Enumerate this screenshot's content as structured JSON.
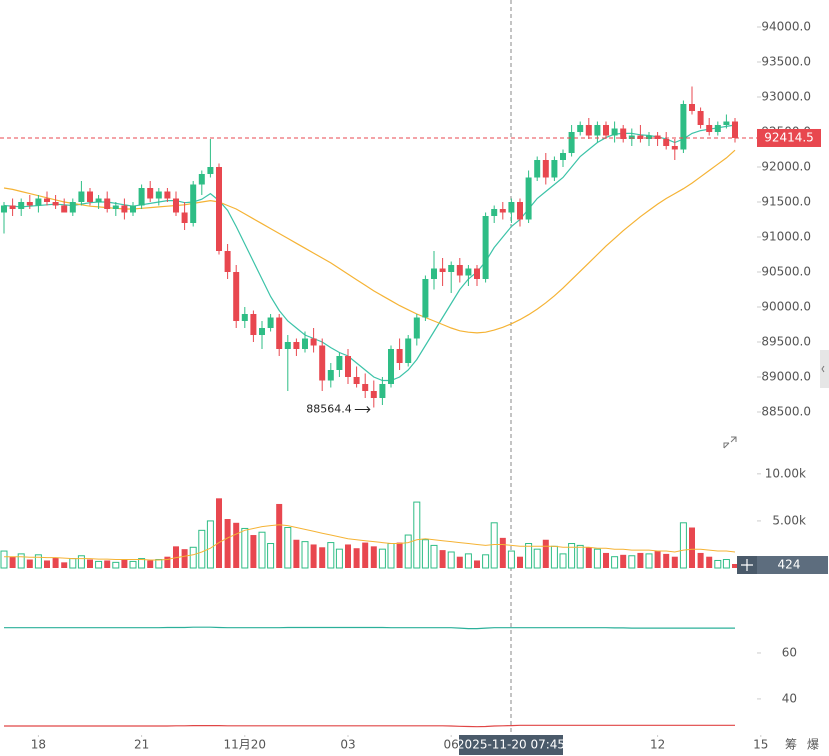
{
  "chart_data": {
    "type": "candlestick",
    "open": [
      91350,
      91450,
      91400,
      91500,
      91450,
      91550,
      91500,
      91450,
      91350,
      91500,
      91650,
      91500,
      91550,
      91400,
      91450,
      91350,
      91450,
      91700,
      91550,
      91650,
      91550,
      91350,
      91200,
      91750,
      91900,
      92000,
      90800,
      90500,
      89800,
      89900,
      89600,
      89700,
      89850,
      89400,
      89500,
      89400,
      89550,
      89450,
      88950,
      89100,
      89300,
      89000,
      88900,
      88800,
      88700,
      88900,
      89400,
      89200,
      89550,
      89850,
      90400,
      90550,
      90500,
      90600,
      90450,
      90550,
      90400,
      91300,
      91400,
      91350,
      91500,
      91250,
      91850,
      92100,
      91850,
      92100,
      92200,
      92500,
      92600,
      92450,
      92600,
      92450,
      92550,
      92400,
      92450,
      92400,
      92450,
      92400,
      92300,
      92250,
      92900,
      92800,
      92600,
      92500,
      92600,
      92650
    ],
    "high": [
      91500,
      91550,
      91550,
      91600,
      91600,
      91650,
      91600,
      91550,
      91550,
      91800,
      91700,
      91600,
      91650,
      91500,
      91550,
      91500,
      91750,
      91800,
      91700,
      91700,
      91650,
      91500,
      91800,
      91950,
      92400,
      92050,
      90900,
      90600,
      90000,
      89950,
      89800,
      89900,
      89900,
      89600,
      89550,
      89650,
      89700,
      89550,
      89200,
      89350,
      89400,
      89150,
      89050,
      88950,
      89000,
      89450,
      89550,
      89600,
      89900,
      90450,
      90800,
      90700,
      90650,
      90700,
      90600,
      90600,
      91350,
      91450,
      91500,
      91550,
      91550,
      91950,
      92150,
      92200,
      92150,
      92250,
      92600,
      92650,
      92700,
      92650,
      92650,
      92650,
      92600,
      92550,
      92600,
      92500,
      92500,
      92500,
      92400,
      92950,
      93150,
      92850,
      92700,
      92650,
      92750,
      92700
    ],
    "low": [
      91050,
      91300,
      91300,
      91400,
      91350,
      91450,
      91400,
      91350,
      91300,
      91450,
      91450,
      91400,
      91350,
      91300,
      91250,
      91300,
      91400,
      91500,
      91450,
      91500,
      91300,
      91100,
      91150,
      91600,
      91850,
      90750,
      90400,
      89700,
      89700,
      89500,
      89400,
      89650,
      89300,
      88800,
      89300,
      89350,
      89350,
      88800,
      88850,
      89000,
      88900,
      88850,
      88700,
      88564.4,
      88600,
      88850,
      89100,
      89150,
      89450,
      89800,
      90250,
      90300,
      90200,
      90350,
      90300,
      90300,
      90350,
      91200,
      91250,
      91200,
      91150,
      91200,
      91800,
      91750,
      91800,
      92000,
      92150,
      92450,
      92400,
      92350,
      92400,
      92350,
      92350,
      92300,
      92350,
      92300,
      92300,
      92250,
      92100,
      92200,
      92750,
      92550,
      92450,
      92450,
      92550,
      92350
    ],
    "close": [
      91450,
      91400,
      91500,
      91450,
      91550,
      91500,
      91450,
      91350,
      91500,
      91650,
      91500,
      91550,
      91400,
      91450,
      91350,
      91450,
      91700,
      91550,
      91650,
      91550,
      91350,
      91200,
      91750,
      91900,
      92000,
      90800,
      90500,
      89800,
      89900,
      89600,
      89700,
      89850,
      89400,
      89500,
      89400,
      89550,
      89450,
      88950,
      89100,
      89300,
      89000,
      88900,
      88800,
      88700,
      88900,
      89400,
      89200,
      89550,
      89850,
      90400,
      90550,
      90500,
      90600,
      90450,
      90550,
      90400,
      91300,
      91400,
      91350,
      91500,
      91250,
      91850,
      92100,
      91850,
      92100,
      92200,
      92500,
      92600,
      92450,
      92600,
      92450,
      92550,
      92400,
      92450,
      92400,
      92450,
      92400,
      92300,
      92250,
      92900,
      92800,
      92600,
      92500,
      92600,
      92650,
      92414.5
    ],
    "volume": [
      1800,
      1200,
      1500,
      900,
      1400,
      800,
      1100,
      600,
      1000,
      1300,
      900,
      700,
      800,
      600,
      900,
      700,
      1000,
      800,
      900,
      1200,
      2300,
      2000,
      2200,
      4000,
      5000,
      7400,
      5200,
      4800,
      4200,
      3500,
      3800,
      2600,
      6800,
      4300,
      3000,
      2800,
      2500,
      2200,
      2700,
      2000,
      2500,
      2100,
      2700,
      2300,
      2000,
      2600,
      2700,
      3500,
      7000,
      3000,
      2400,
      1900,
      1700,
      1200,
      1500,
      800,
      1400,
      4800,
      3200,
      1800,
      1200,
      2600,
      2000,
      3000,
      2300,
      1500,
      2600,
      2400,
      2200,
      2000,
      1600,
      1200,
      1400,
      1300,
      1600,
      1500,
      1800,
      1500,
      1200,
      4800,
      4300,
      1600,
      1200,
      800,
      900,
      424
    ],
    "up_color": "#2ebd85",
    "down_color": "#e8474f",
    "ylim": [
      88100,
      94385.7
    ],
    "yticks": [
      {
        "value": 94000,
        "label": "94000.0"
      },
      {
        "value": 93500,
        "label": "93500.0"
      },
      {
        "value": 93000,
        "label": "93000.0"
      },
      {
        "value": 92500,
        "label": "92500.0"
      },
      {
        "value": 92000,
        "label": "92000.0"
      },
      {
        "value": 91500,
        "label": "91500.0"
      },
      {
        "value": 91000,
        "label": "91000.0"
      },
      {
        "value": 90500,
        "label": "90500.0"
      },
      {
        "value": 90000,
        "label": "90000.0"
      },
      {
        "value": 89500,
        "label": "89500.0"
      },
      {
        "value": 89000,
        "label": "89000.0"
      },
      {
        "value": 88500,
        "label": "88500.0"
      }
    ],
    "ma": [
      {
        "color": "#3cc3a8",
        "values": [
          91450,
          91440,
          91430,
          91440,
          91450,
          91460,
          91470,
          91460,
          91450,
          91470,
          91490,
          91500,
          91500,
          91480,
          91460,
          91440,
          91460,
          91480,
          91500,
          91520,
          91520,
          91490,
          91500,
          91540,
          91620,
          91520,
          91380,
          91150,
          90900,
          90650,
          90400,
          90150,
          89950,
          89800,
          89700,
          89600,
          89550,
          89500,
          89420,
          89350,
          89300,
          89200,
          89100,
          89000,
          88950,
          88950,
          89000,
          89100,
          89250,
          89450,
          89650,
          89850,
          90050,
          90250,
          90400,
          90500,
          90650,
          90850,
          91000,
          91150,
          91250,
          91400,
          91550,
          91650,
          91750,
          91850,
          92000,
          92150,
          92250,
          92350,
          92420,
          92470,
          92480,
          92480,
          92460,
          92450,
          92430,
          92400,
          92350,
          92400,
          92480,
          92520,
          92540,
          92560,
          92580,
          92600
        ]
      },
      {
        "color": "#f5b335",
        "values": [
          91700,
          91680,
          91650,
          91620,
          91590,
          91560,
          91530,
          91500,
          91480,
          91460,
          91440,
          91430,
          91420,
          91410,
          91400,
          91400,
          91410,
          91420,
          91430,
          91440,
          91450,
          91460,
          91480,
          91500,
          91520,
          91500,
          91450,
          91400,
          91330,
          91260,
          91190,
          91120,
          91050,
          90980,
          90910,
          90840,
          90770,
          90700,
          90630,
          90550,
          90470,
          90390,
          90310,
          90230,
          90160,
          90090,
          90020,
          89960,
          89900,
          89850,
          89800,
          89750,
          89700,
          89660,
          89640,
          89630,
          89640,
          89670,
          89710,
          89760,
          89820,
          89890,
          89970,
          90060,
          90160,
          90270,
          90390,
          90510,
          90630,
          90750,
          90870,
          90980,
          91090,
          91190,
          91290,
          91380,
          91470,
          91550,
          91620,
          91690,
          91770,
          91860,
          91950,
          92040,
          92130,
          92240
        ]
      }
    ],
    "volume_ylim": [
      0,
      12000
    ],
    "volume_yticks": [
      {
        "value": 10000,
        "label": "10.00k"
      },
      {
        "value": 5000,
        "label": "5.00k"
      }
    ],
    "volume_ma": {
      "color": "#f5b335",
      "values": [
        1200,
        1200,
        1200,
        1150,
        1150,
        1100,
        1100,
        1050,
        1000,
        1000,
        1000,
        950,
        950,
        900,
        900,
        900,
        900,
        850,
        850,
        900,
        1100,
        1250,
        1400,
        1700,
        2100,
        2700,
        3200,
        3600,
        4000,
        4200,
        4400,
        4500,
        4600,
        4500,
        4300,
        4100,
        3900,
        3700,
        3500,
        3300,
        3100,
        3000,
        2900,
        2800,
        2700,
        2600,
        2600,
        2700,
        3000,
        3100,
        3000,
        2900,
        2800,
        2700,
        2600,
        2500,
        2400,
        2500,
        2500,
        2400,
        2300,
        2300,
        2300,
        2300,
        2300,
        2200,
        2200,
        2200,
        2200,
        2100,
        2100,
        2000,
        2000,
        1900,
        1900,
        1900,
        1800,
        1800,
        1700,
        1900,
        2000,
        2000,
        1900,
        1800,
        1800,
        1700
      ]
    },
    "indicator_ylim": [
      24.3,
      87.4
    ],
    "indicator_yticks": [
      60,
      40
    ],
    "indicator_lines": [
      {
        "color": "#2bb09a",
        "values": [
          71,
          71,
          71,
          71,
          71,
          71,
          71,
          71,
          71,
          71,
          71,
          71,
          71,
          71,
          71,
          71,
          71,
          71,
          71,
          71.1,
          71.1,
          71.1,
          71.2,
          71.2,
          71.2,
          71.1,
          71,
          71,
          71,
          71,
          71,
          71,
          71,
          71.1,
          71.1,
          71.1,
          71.1,
          71.1,
          71.1,
          71.1,
          71.1,
          71.1,
          71.1,
          71.1,
          71.1,
          71,
          71,
          71,
          71,
          71,
          71,
          71,
          71,
          70.8,
          70.6,
          70.6,
          70.8,
          71,
          71,
          71,
          71,
          71,
          71,
          71,
          71,
          71,
          71,
          71,
          71,
          71,
          71,
          70.9,
          70.9,
          70.8,
          70.8,
          70.8,
          70.8,
          70.8,
          70.8,
          70.8,
          70.8,
          70.8,
          70.8,
          70.8,
          70.8,
          70.8
        ]
      },
      {
        "color": "#e04646",
        "values": [
          28.2,
          28.2,
          28.2,
          28.2,
          28.2,
          28.2,
          28.2,
          28.2,
          28.2,
          28.2,
          28.2,
          28.2,
          28.2,
          28.2,
          28.2,
          28.2,
          28.2,
          28.2,
          28.2,
          28.2,
          28.3,
          28.3,
          28.4,
          28.4,
          28.4,
          28.4,
          28.3,
          28.3,
          28.3,
          28.3,
          28.3,
          28.3,
          28.3,
          28.3,
          28.3,
          28.3,
          28.3,
          28.3,
          28.3,
          28.3,
          28.3,
          28.3,
          28.3,
          28.3,
          28.3,
          28.3,
          28.3,
          28.3,
          28.3,
          28.3,
          28.3,
          28.3,
          28.2,
          28.1,
          28,
          27.9,
          28,
          28.2,
          28.3,
          28.4,
          28.5,
          28.5,
          28.5,
          28.5,
          28.5,
          28.5,
          28.5,
          28.5,
          28.5,
          28.5,
          28.5,
          28.5,
          28.5,
          28.5,
          28.5,
          28.5,
          28.5,
          28.5,
          28.5,
          28.5,
          28.5,
          28.5,
          28.5,
          28.5,
          28.5,
          28.5
        ]
      }
    ],
    "xticks": [
      {
        "value": 4,
        "label": "18"
      },
      {
        "value": 16,
        "label": "21"
      },
      {
        "value": 28,
        "label": "11月20"
      },
      {
        "value": 40,
        "label": "03"
      },
      {
        "value": 52,
        "label": "06"
      },
      {
        "value": 76,
        "label": "12"
      },
      {
        "value": 88,
        "label": "15"
      }
    ],
    "crosshair_label": "2025-11-20 07:45",
    "toolbar": [
      "筹",
      "爆"
    ]
  }
}
